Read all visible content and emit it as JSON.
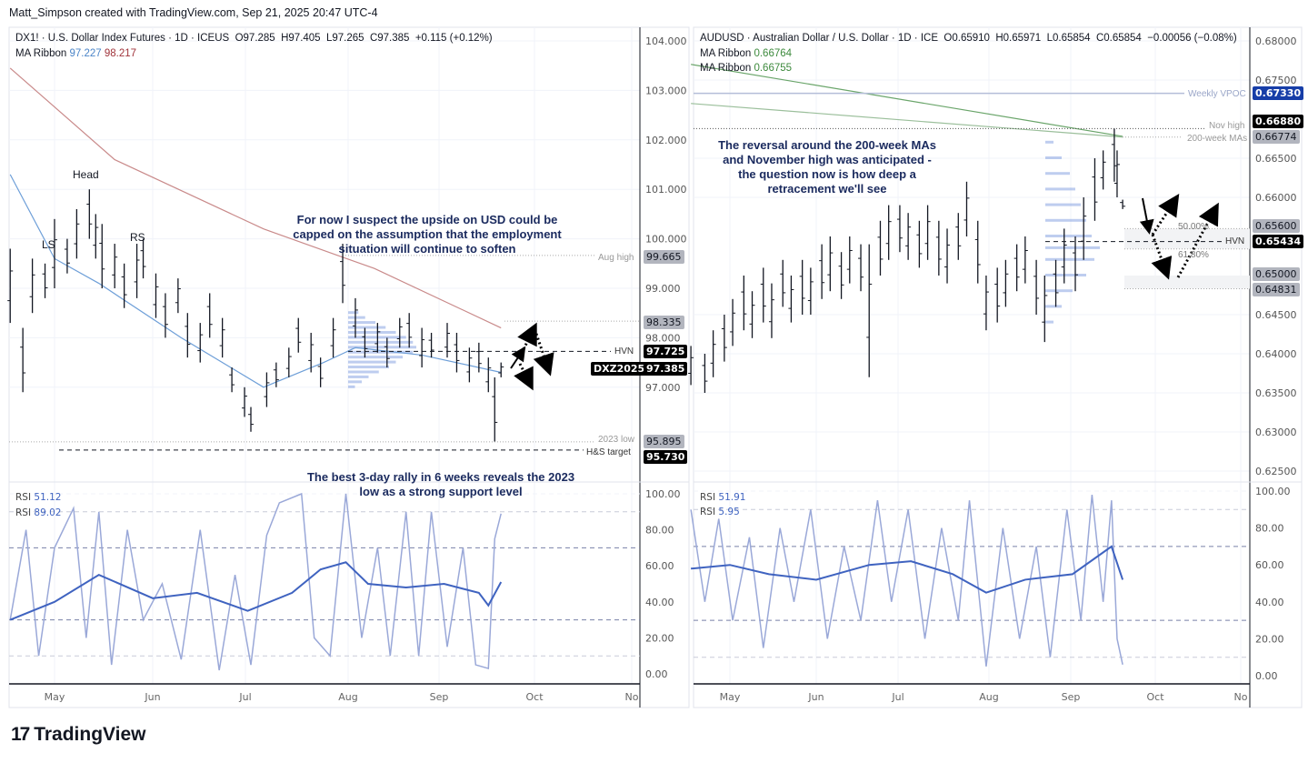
{
  "credit": "Matt_Simpson created with TradingView.com, Sep 21, 2025 20:47 UTC-4",
  "brand": "TradingView",
  "colors": {
    "bar": "#131722",
    "ma_fast": "#6e9fd8",
    "ma_slow": "#c98a8a",
    "ma_green": "#6aa56a",
    "rsi_fast": "#9aa8d8",
    "rsi_slow": "#3f63c0",
    "vpoc": "#173ea8",
    "profile": "#7e9be0"
  },
  "left": {
    "symbol": "DX1! · U.S. Dollar Index Futures · 1D · ICEUS",
    "open": "O97.285",
    "high": "H97.405",
    "low": "L97.265",
    "close": "C97.385",
    "change": "+0.115 (+0.12%)",
    "ma_label": "MA Ribbon",
    "ma_fast": "97.227",
    "ma_slow": "98.217",
    "rsi_label": "RSI",
    "rsi1": "51.12",
    "rsi2": "89.02",
    "labels": {
      "head": "Head",
      "ls": "LS",
      "rs": "RS",
      "aug_high": "Aug high",
      "hvn": "HVN",
      "low2023": "2023 low",
      "hs_target": "H&S target"
    },
    "annotation_top": "For now I suspect the upside on USD could be capped on the assumption that the employment situation will continue to soften",
    "annotation_bottom": "The best 3-day rally in 6 weeks reveals the 2023 low as a strong support level",
    "axis_tags": {
      "aug_high": "99.665",
      "p98335": "98.335",
      "hvn": "97.725",
      "contract": "DXZ2025",
      "last": "97.385",
      "low2023": "95.895",
      "target": "95.730"
    },
    "months": [
      "May",
      "Jun",
      "Jul",
      "Aug",
      "Sep",
      "Oct",
      "No"
    ]
  },
  "right": {
    "symbol": "AUDUSD · Australian Dollar / U.S. Dollar · 1D · ICE",
    "open": "O0.65910",
    "high": "H0.65971",
    "low": "L0.65854",
    "close": "C0.65854",
    "change": "−0.00056 (−0.08%)",
    "ma_label": "MA Ribbon",
    "ma1": "0.66764",
    "ma2": "0.66755",
    "rsi_label": "RSI",
    "rsi1": "51.91",
    "rsi2": "5.95",
    "labels": {
      "vpoc": "Weekly VPOC",
      "nov_high": "Nov high",
      "ma200": "200-week MAs",
      "fib50": "50.00%",
      "fib618": "61.80%",
      "hvn": "HVN"
    },
    "annotation": "The reversal around the 200-week MAs and November high was anticipated - the question now is how deep a retracement we'll see",
    "axis_tags": {
      "vpoc": "0.67330",
      "nov_high": "0.66880",
      "ma200": "0.66774",
      "fib50": "0.65600",
      "hvn": "0.65434",
      "p65": "0.65000",
      "p64831": "0.64831"
    },
    "months": [
      "May",
      "Jun",
      "Jul",
      "Aug",
      "Sep",
      "Oct",
      "No"
    ]
  },
  "chart_data": [
    {
      "type": "ohlc-bar",
      "title": "DX1! · U.S. Dollar Index Futures · 1D",
      "ylim": [
        95.5,
        104.5
      ],
      "yticks": [
        "104.000",
        "103.000",
        "102.000",
        "101.000",
        "100.000",
        "99.000",
        "98.000",
        "97.000"
      ],
      "bars": [
        [
          "2025-04-17",
          99.8,
          98.3
        ],
        [
          "2025-04-21",
          98.2,
          96.9
        ],
        [
          "2025-04-24",
          99.6,
          98.5
        ],
        [
          "2025-04-28",
          99.5,
          98.8
        ],
        [
          "2025-05-01",
          100.4,
          99.0
        ],
        [
          "2025-05-05",
          100.0,
          99.3
        ],
        [
          "2025-05-08",
          100.6,
          99.6
        ],
        [
          "2025-05-12",
          101.0,
          100.0
        ],
        [
          "2025-05-14",
          100.5,
          99.6
        ],
        [
          "2025-05-16",
          100.3,
          99.0
        ],
        [
          "2025-05-20",
          99.9,
          99.0
        ],
        [
          "2025-05-23",
          99.5,
          98.6
        ],
        [
          "2025-05-27",
          99.9,
          98.8
        ],
        [
          "2025-05-29",
          100.0,
          99.2
        ],
        [
          "2025-06-02",
          99.3,
          98.4
        ],
        [
          "2025-06-05",
          98.9,
          98.0
        ],
        [
          "2025-06-09",
          99.2,
          98.5
        ],
        [
          "2025-06-12",
          98.5,
          97.6
        ],
        [
          "2025-06-16",
          98.3,
          97.5
        ],
        [
          "2025-06-19",
          98.9,
          98.0
        ],
        [
          "2025-06-23",
          98.4,
          97.6
        ],
        [
          "2025-06-26",
          97.4,
          96.9
        ],
        [
          "2025-06-30",
          97.0,
          96.4
        ],
        [
          "2025-07-02",
          96.6,
          96.1
        ],
        [
          "2025-07-07",
          97.3,
          96.6
        ],
        [
          "2025-07-10",
          97.5,
          97.0
        ],
        [
          "2025-07-14",
          97.8,
          97.2
        ],
        [
          "2025-07-17",
          98.4,
          97.7
        ],
        [
          "2025-07-21",
          98.1,
          97.3
        ],
        [
          "2025-07-24",
          97.6,
          97.0
        ],
        [
          "2025-07-28",
          98.4,
          97.6
        ],
        [
          "2025-07-31",
          99.9,
          98.7
        ],
        [
          "2025-08-04",
          98.8,
          98.0
        ],
        [
          "2025-08-07",
          98.2,
          97.6
        ],
        [
          "2025-08-11",
          98.3,
          97.7
        ],
        [
          "2025-08-14",
          98.0,
          97.4
        ],
        [
          "2025-08-18",
          98.4,
          97.8
        ],
        [
          "2025-08-21",
          98.5,
          97.8
        ],
        [
          "2025-08-25",
          98.2,
          97.4
        ],
        [
          "2025-08-28",
          98.1,
          97.6
        ],
        [
          "2025-09-02",
          98.3,
          97.6
        ],
        [
          "2025-09-05",
          98.1,
          97.3
        ],
        [
          "2025-09-09",
          97.8,
          97.1
        ],
        [
          "2025-09-12",
          97.9,
          97.3
        ],
        [
          "2025-09-15",
          97.6,
          96.9
        ],
        [
          "2025-09-17",
          97.2,
          95.9
        ],
        [
          "2025-09-19",
          97.5,
          97.2
        ]
      ],
      "ma_fast": [
        [
          "2025-04-17",
          101.3
        ],
        [
          "2025-05-01",
          99.6
        ],
        [
          "2025-05-15",
          99.1
        ],
        [
          "2025-06-10",
          98.0
        ],
        [
          "2025-07-06",
          97.0
        ],
        [
          "2025-07-25",
          97.5
        ],
        [
          "2025-08-04",
          97.8
        ],
        [
          "2025-08-25",
          97.65
        ],
        [
          "2025-09-19",
          97.3
        ]
      ],
      "ma_slow": [
        [
          "2025-04-17",
          103.45
        ],
        [
          "2025-05-20",
          101.6
        ],
        [
          "2025-07-06",
          100.2
        ],
        [
          "2025-08-10",
          99.4
        ],
        [
          "2025-09-19",
          98.2
        ]
      ],
      "rsi_yticks": [
        "100.00",
        "80.00",
        "60.00",
        "40.00",
        "20.00",
        "0.00"
      ],
      "rsi_fast": [
        [
          "2025-04-17",
          30
        ],
        [
          "2025-04-22",
          80
        ],
        [
          "2025-04-26",
          10
        ],
        [
          "2025-05-01",
          70
        ],
        [
          "2025-05-07",
          92
        ],
        [
          "2025-05-11",
          20
        ],
        [
          "2025-05-15",
          90
        ],
        [
          "2025-05-19",
          5
        ],
        [
          "2025-05-24",
          80
        ],
        [
          "2025-05-29",
          30
        ],
        [
          "2025-06-04",
          50
        ],
        [
          "2025-06-10",
          8
        ],
        [
          "2025-06-16",
          80
        ],
        [
          "2025-06-22",
          2
        ],
        [
          "2025-06-27",
          55
        ],
        [
          "2025-07-02",
          5
        ],
        [
          "2025-07-07",
          77
        ],
        [
          "2025-07-11",
          95
        ],
        [
          "2025-07-18",
          100
        ],
        [
          "2025-07-22",
          20
        ],
        [
          "2025-07-27",
          10
        ],
        [
          "2025-08-01",
          100
        ],
        [
          "2025-08-06",
          20
        ],
        [
          "2025-08-11",
          70
        ],
        [
          "2025-08-15",
          10
        ],
        [
          "2025-08-20",
          90
        ],
        [
          "2025-08-24",
          10
        ],
        [
          "2025-08-28",
          90
        ],
        [
          "2025-09-02",
          15
        ],
        [
          "2025-09-07",
          70
        ],
        [
          "2025-09-11",
          5
        ],
        [
          "2025-09-15",
          3
        ],
        [
          "2025-09-17",
          75
        ],
        [
          "2025-09-19",
          89
        ]
      ],
      "rsi_slow": [
        [
          "2025-04-17",
          30
        ],
        [
          "2025-05-01",
          40
        ],
        [
          "2025-05-15",
          55
        ],
        [
          "2025-06-01",
          42
        ],
        [
          "2025-06-15",
          45
        ],
        [
          "2025-07-01",
          35
        ],
        [
          "2025-07-15",
          45
        ],
        [
          "2025-07-24",
          58
        ],
        [
          "2025-08-01",
          62
        ],
        [
          "2025-08-08",
          50
        ],
        [
          "2025-08-20",
          48
        ],
        [
          "2025-09-01",
          50
        ],
        [
          "2025-09-12",
          45
        ],
        [
          "2025-09-15",
          38
        ],
        [
          "2025-09-19",
          51
        ]
      ],
      "profile": [
        [
          98.5,
          0.15
        ],
        [
          98.4,
          0.25
        ],
        [
          98.3,
          0.4
        ],
        [
          98.2,
          0.55
        ],
        [
          98.1,
          0.7
        ],
        [
          98.0,
          0.85
        ],
        [
          97.9,
          0.95
        ],
        [
          97.8,
          1.0
        ],
        [
          97.7,
          0.95
        ],
        [
          97.6,
          0.8
        ],
        [
          97.5,
          0.7
        ],
        [
          97.4,
          0.6
        ],
        [
          97.3,
          0.45
        ],
        [
          97.2,
          0.3
        ],
        [
          97.1,
          0.2
        ],
        [
          97.0,
          0.1
        ]
      ]
    },
    {
      "type": "ohlc-bar",
      "title": "AUDUSD · Australian Dollar / U.S. Dollar · 1D",
      "ylim": [
        0.625,
        0.68
      ],
      "yticks": [
        "0.68000",
        "0.67500",
        "0.66500",
        "0.66000",
        "0.64500",
        "0.64000",
        "0.63500",
        "0.63000",
        "0.62500"
      ],
      "bars": [
        [
          "2025-04-17",
          0.641,
          0.636
        ],
        [
          "2025-04-22",
          0.64,
          0.635
        ],
        [
          "2025-04-25",
          0.643,
          0.637
        ],
        [
          "2025-04-29",
          0.645,
          0.639
        ],
        [
          "2025-05-02",
          0.647,
          0.641
        ],
        [
          "2025-05-06",
          0.65,
          0.643
        ],
        [
          "2025-05-09",
          0.648,
          0.642
        ],
        [
          "2025-05-13",
          0.651,
          0.644
        ],
        [
          "2025-05-16",
          0.649,
          0.642
        ],
        [
          "2025-05-20",
          0.652,
          0.646
        ],
        [
          "2025-05-23",
          0.65,
          0.644
        ],
        [
          "2025-05-27",
          0.652,
          0.645
        ],
        [
          "2025-05-30",
          0.651,
          0.645
        ],
        [
          "2025-06-03",
          0.654,
          0.647
        ],
        [
          "2025-06-06",
          0.655,
          0.648
        ],
        [
          "2025-06-10",
          0.653,
          0.647
        ],
        [
          "2025-06-13",
          0.655,
          0.649
        ],
        [
          "2025-06-17",
          0.654,
          0.648
        ],
        [
          "2025-06-20",
          0.654,
          0.637
        ],
        [
          "2025-06-24",
          0.657,
          0.65
        ],
        [
          "2025-06-27",
          0.659,
          0.652
        ],
        [
          "2025-07-01",
          0.659,
          0.653
        ],
        [
          "2025-07-04",
          0.658,
          0.652
        ],
        [
          "2025-07-08",
          0.657,
          0.651
        ],
        [
          "2025-07-11",
          0.659,
          0.652
        ],
        [
          "2025-07-15",
          0.657,
          0.65
        ],
        [
          "2025-07-18",
          0.656,
          0.649
        ],
        [
          "2025-07-22",
          0.658,
          0.652
        ],
        [
          "2025-07-25",
          0.662,
          0.655
        ],
        [
          "2025-07-29",
          0.657,
          0.649
        ],
        [
          "2025-08-01",
          0.65,
          0.643
        ],
        [
          "2025-08-05",
          0.651,
          0.644
        ],
        [
          "2025-08-08",
          0.652,
          0.646
        ],
        [
          "2025-08-12",
          0.654,
          0.648
        ],
        [
          "2025-08-15",
          0.655,
          0.649
        ],
        [
          "2025-08-19",
          0.652,
          0.645
        ],
        [
          "2025-08-22",
          0.65,
          0.6415
        ],
        [
          "2025-08-26",
          0.652,
          0.646
        ],
        [
          "2025-08-29",
          0.656,
          0.649
        ],
        [
          "2025-09-02",
          0.655,
          0.648
        ],
        [
          "2025-09-05",
          0.66,
          0.652
        ],
        [
          "2025-09-09",
          0.665,
          0.657
        ],
        [
          "2025-09-12",
          0.666,
          0.661
        ],
        [
          "2025-09-16",
          0.6688,
          0.662
        ],
        [
          "2025-09-17",
          0.666,
          0.66
        ],
        [
          "2025-09-19",
          0.6597,
          0.6585
        ]
      ],
      "ma_200w_a": [
        [
          "2025-04-17",
          0.677
        ],
        [
          "2025-09-19",
          0.6678
        ]
      ],
      "ma_200w_b": [
        [
          "2025-04-17",
          0.672
        ],
        [
          "2025-09-19",
          0.6677
        ]
      ],
      "rsi_yticks": [
        "100.00",
        "80.00",
        "60.00",
        "40.00",
        "20.00",
        "0.00"
      ],
      "rsi_fast": [
        [
          "2025-04-17",
          90
        ],
        [
          "2025-04-22",
          40
        ],
        [
          "2025-04-27",
          85
        ],
        [
          "2025-05-02",
          30
        ],
        [
          "2025-05-08",
          75
        ],
        [
          "2025-05-13",
          15
        ],
        [
          "2025-05-19",
          80
        ],
        [
          "2025-05-24",
          40
        ],
        [
          "2025-05-30",
          90
        ],
        [
          "2025-06-05",
          20
        ],
        [
          "2025-06-11",
          70
        ],
        [
          "2025-06-17",
          30
        ],
        [
          "2025-06-23",
          95
        ],
        [
          "2025-06-28",
          40
        ],
        [
          "2025-07-04",
          90
        ],
        [
          "2025-07-10",
          20
        ],
        [
          "2025-07-16",
          80
        ],
        [
          "2025-07-22",
          30
        ],
        [
          "2025-07-26",
          95
        ],
        [
          "2025-08-01",
          5
        ],
        [
          "2025-08-07",
          80
        ],
        [
          "2025-08-13",
          20
        ],
        [
          "2025-08-19",
          70
        ],
        [
          "2025-08-24",
          10
        ],
        [
          "2025-08-30",
          90
        ],
        [
          "2025-09-04",
          30
        ],
        [
          "2025-09-08",
          98
        ],
        [
          "2025-09-12",
          40
        ],
        [
          "2025-09-15",
          95
        ],
        [
          "2025-09-17",
          20
        ],
        [
          "2025-09-19",
          6
        ]
      ],
      "rsi_slow": [
        [
          "2025-04-17",
          58
        ],
        [
          "2025-05-01",
          60
        ],
        [
          "2025-05-15",
          55
        ],
        [
          "2025-06-01",
          52
        ],
        [
          "2025-06-20",
          60
        ],
        [
          "2025-07-05",
          62
        ],
        [
          "2025-07-20",
          55
        ],
        [
          "2025-08-01",
          45
        ],
        [
          "2025-08-15",
          52
        ],
        [
          "2025-09-01",
          55
        ],
        [
          "2025-09-15",
          70
        ],
        [
          "2025-09-19",
          52
        ]
      ],
      "profile": [
        [
          0.667,
          0.15
        ],
        [
          0.665,
          0.3
        ],
        [
          0.663,
          0.45
        ],
        [
          0.661,
          0.55
        ],
        [
          0.659,
          0.65
        ],
        [
          0.657,
          0.75
        ],
        [
          0.655,
          0.85
        ],
        [
          0.6535,
          1.0
        ],
        [
          0.652,
          0.9
        ],
        [
          0.65,
          0.75
        ],
        [
          0.648,
          0.5
        ],
        [
          0.646,
          0.3
        ],
        [
          0.644,
          0.15
        ]
      ]
    }
  ]
}
